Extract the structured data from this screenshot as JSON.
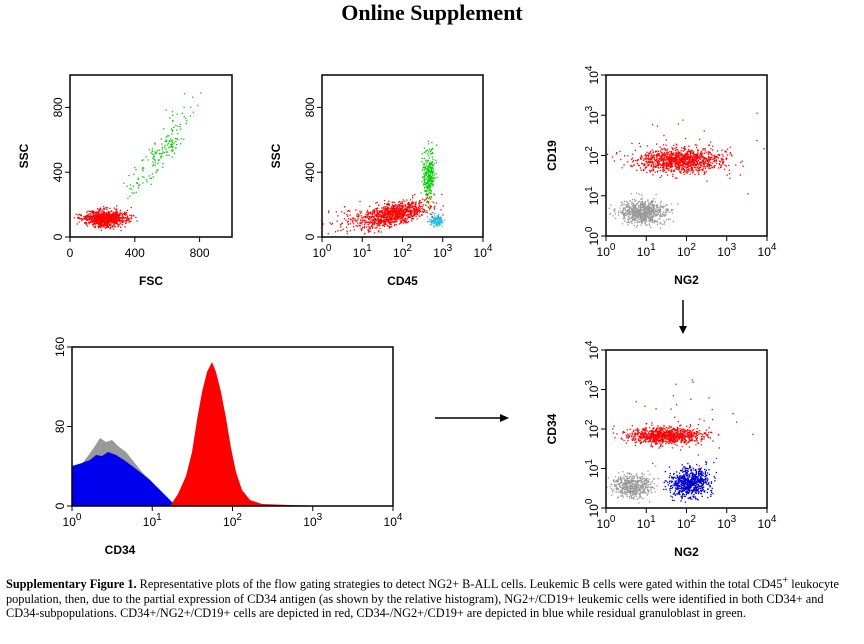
{
  "header": {
    "title": "Online Supplement"
  },
  "panels": [
    {
      "ylabel": "SSC",
      "xlabel": "FSC",
      "xscale": "linear",
      "xlim": [
        0,
        1000
      ],
      "xticks": [
        0,
        400,
        800
      ],
      "ylim": [
        0,
        1000
      ],
      "yticks": [
        0,
        400,
        800
      ]
    },
    {
      "ylabel": "SSC",
      "xlabel": "CD45",
      "xscale": "log",
      "xticks": [
        {
          "base": "10",
          "exp": "0"
        },
        {
          "base": "10",
          "exp": "1"
        },
        {
          "base": "10",
          "exp": "2"
        },
        {
          "base": "10",
          "exp": "3"
        },
        {
          "base": "10",
          "exp": "4"
        }
      ],
      "ylim": [
        0,
        1000
      ],
      "yticks": [
        0,
        400,
        800
      ]
    },
    {
      "ylabel": "CD19",
      "xlabel": "NG2",
      "xscale": "log",
      "yscale": "log",
      "xticks": [
        {
          "base": "10",
          "exp": "0"
        },
        {
          "base": "10",
          "exp": "1"
        },
        {
          "base": "10",
          "exp": "2"
        },
        {
          "base": "10",
          "exp": "3"
        },
        {
          "base": "10",
          "exp": "4"
        }
      ],
      "yticks": [
        {
          "base": "10",
          "exp": "0"
        },
        {
          "base": "10",
          "exp": "1"
        },
        {
          "base": "10",
          "exp": "2"
        },
        {
          "base": "10",
          "exp": "3"
        },
        {
          "base": "10",
          "exp": "4"
        }
      ]
    },
    {
      "xlabel": "CD34",
      "xscale": "log",
      "xticks": [
        {
          "base": "10",
          "exp": "0"
        },
        {
          "base": "10",
          "exp": "1"
        },
        {
          "base": "10",
          "exp": "2"
        },
        {
          "base": "10",
          "exp": "3"
        },
        {
          "base": "10",
          "exp": "4"
        }
      ],
      "ylim": [
        0,
        160
      ],
      "yticks": [
        0,
        80,
        160
      ]
    },
    {
      "ylabel": "CD34",
      "xlabel": "NG2",
      "xscale": "log",
      "yscale": "log",
      "xticks": [
        {
          "base": "10",
          "exp": "0"
        },
        {
          "base": "10",
          "exp": "1"
        },
        {
          "base": "10",
          "exp": "2"
        },
        {
          "base": "10",
          "exp": "3"
        },
        {
          "base": "10",
          "exp": "4"
        }
      ],
      "yticks": [
        {
          "base": "10",
          "exp": "0"
        },
        {
          "base": "10",
          "exp": "1"
        },
        {
          "base": "10",
          "exp": "2"
        },
        {
          "base": "10",
          "exp": "3"
        },
        {
          "base": "10",
          "exp": "4"
        }
      ]
    }
  ],
  "caption": {
    "label": "Supplementary Figure 1.",
    "text1": " Representative plots of the flow gating strategies to detect NG2+ B-ALL cells. Leukemic B cells were gated within the total CD45",
    "sup": "+",
    "text2": " leukocyte population, then, due to the partial expression of CD34 antigen (as shown by the relative histogram), NG2+/CD19+ leukemic cells were identified in both CD34+ and CD34-subpopulations. CD34+/NG2+/CD19+ cells are depicted in red, CD34-/NG2+/CD19+ are depicted in blue while residual granuloblast in green."
  }
}
